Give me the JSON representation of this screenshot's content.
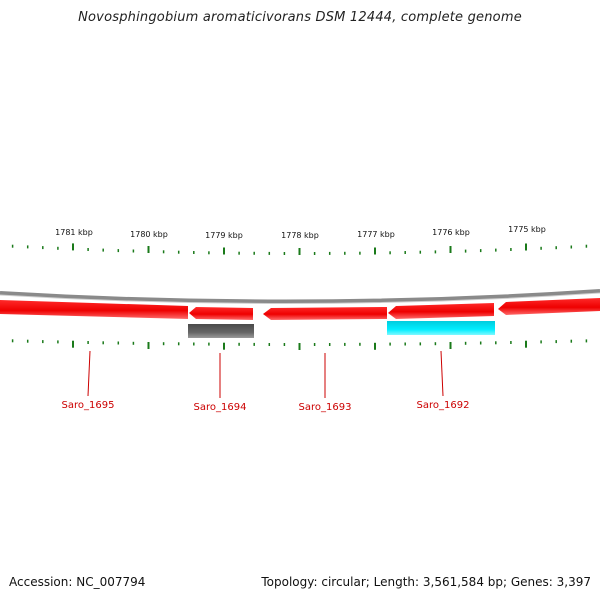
{
  "title": "Novosphingobium aromaticivorans DSM 12444, complete genome",
  "footer": {
    "accession": "Accession: NC_007794",
    "summary": "Topology: circular; Length: 3,561,584 bp; Genes: 3,397"
  },
  "colors": {
    "backbone": "#8a8a8a",
    "gene_red": "#ee0000",
    "gene_gray": "#606060",
    "gene_cyan": "#00e5ee",
    "tick_green": "#1a7a1a",
    "label_red": "#cc0000"
  },
  "scale_labels": [
    "1781 kbp",
    "1780 kbp",
    "1779 kbp",
    "1778 kbp",
    "1777 kbp",
    "1776 kbp",
    "1775 kbp"
  ],
  "genes": [
    {
      "label": "Saro_1695",
      "strand": "minus",
      "color": "red"
    },
    {
      "label": "Saro_1694",
      "strand": "minus",
      "color": "red"
    },
    {
      "label": "Saro_1693",
      "strand": "minus",
      "color": "red"
    },
    {
      "label": "Saro_1692",
      "strand": "minus",
      "color": "red"
    }
  ],
  "unlabeled_features": [
    {
      "color": "red",
      "strand": "minus"
    },
    {
      "color": "gray",
      "track": "inner"
    },
    {
      "color": "cyan",
      "track": "inner"
    }
  ]
}
